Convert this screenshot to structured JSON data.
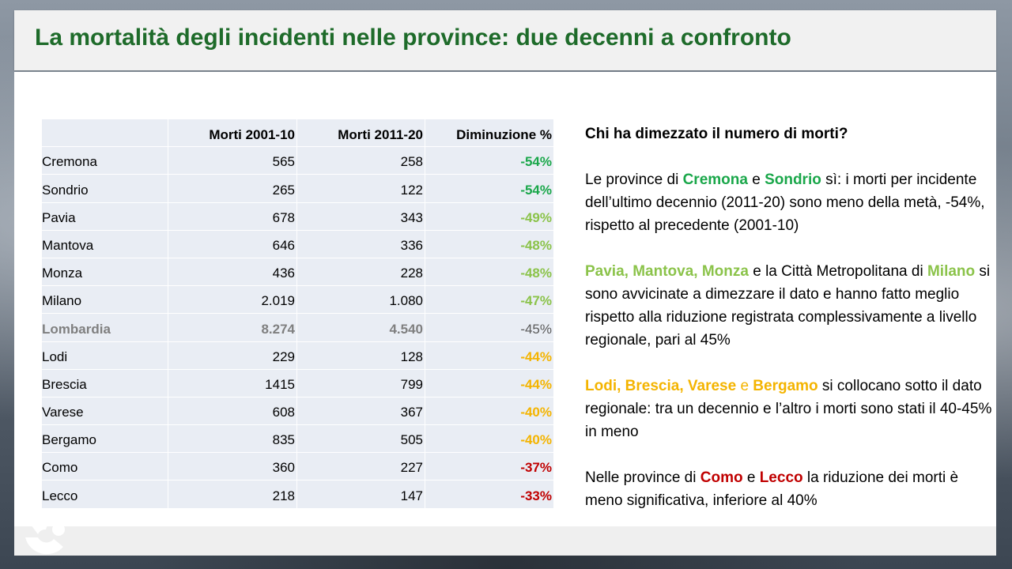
{
  "title": "La mortalità degli incidenti nelle province: due decenni a confronto",
  "colors": {
    "title": "#1e6b2a",
    "halved": "#1aa74a",
    "near_half": "#8bc34a",
    "below_region": "#f4b400",
    "least": "#c00000",
    "region": "#7f7f7f"
  },
  "table": {
    "headers": [
      "",
      "Morti 2001-10",
      "Morti 2011-20",
      "Diminuzione %"
    ],
    "rows": [
      {
        "name": "Cremona",
        "d1": "565",
        "d2": "258",
        "pct": "-54%",
        "group": "halved"
      },
      {
        "name": "Sondrio",
        "d1": "265",
        "d2": "122",
        "pct": "-54%",
        "group": "halved"
      },
      {
        "name": "Pavia",
        "d1": "678",
        "d2": "343",
        "pct": "-49%",
        "group": "near_half"
      },
      {
        "name": "Mantova",
        "d1": "646",
        "d2": "336",
        "pct": "-48%",
        "group": "near_half"
      },
      {
        "name": "Monza",
        "d1": "436",
        "d2": "228",
        "pct": "-48%",
        "group": "near_half"
      },
      {
        "name": "Milano",
        "d1": "2.019",
        "d2": "1.080",
        "pct": "-47%",
        "group": "near_half"
      },
      {
        "name": "Lombardia",
        "d1": "8.274",
        "d2": "4.540",
        "pct": "-45%",
        "group": "region"
      },
      {
        "name": "Lodi",
        "d1": "229",
        "d2": "128",
        "pct": "-44%",
        "group": "below_region"
      },
      {
        "name": "Brescia",
        "d1": "1415",
        "d2": "799",
        "pct": "-44%",
        "group": "below_region"
      },
      {
        "name": "Varese",
        "d1": "608",
        "d2": "367",
        "pct": "-40%",
        "group": "below_region"
      },
      {
        "name": "Bergamo",
        "d1": "835",
        "d2": "505",
        "pct": "-40%",
        "group": "below_region"
      },
      {
        "name": "Como",
        "d1": "360",
        "d2": "227",
        "pct": "-37%",
        "group": "least"
      },
      {
        "name": "Lecco",
        "d1": "218",
        "d2": "147",
        "pct": "-33%",
        "group": "least"
      }
    ]
  },
  "text": {
    "question": "Chi ha dimezzato il numero di morti?",
    "p1": {
      "a": "Le province di ",
      "cremona": "Cremona",
      "e": " e ",
      "sondrio": "Sondrio",
      "b": " sì: i morti per incidente dell’ultimo decennio (2011-20)  sono meno della metà, -54%,  rispetto al precedente (2001-10)"
    },
    "p2": {
      "names": "Pavia, Mantova, Monza",
      "a": " e la Città Metropolitana di ",
      "milano": "Milano",
      "b": " si sono avvicinate a dimezzare il dato e hanno fatto meglio rispetto alla riduzione registrata complessivamente a livello regionale, pari al 45%"
    },
    "p3": {
      "names": "Lodi, Brescia, Varese",
      "e": " e ",
      "bergamo": "Bergamo",
      "b": " si collocano sotto il dato regionale: tra un decennio e l’altro i morti sono stati il 40-45% in meno"
    },
    "p4": {
      "a": "Nelle province di ",
      "como": "Como",
      "e": " e ",
      "lecco": "Lecco",
      "b": " la riduzione dei morti è meno significativa, inferiore al 40%"
    }
  }
}
